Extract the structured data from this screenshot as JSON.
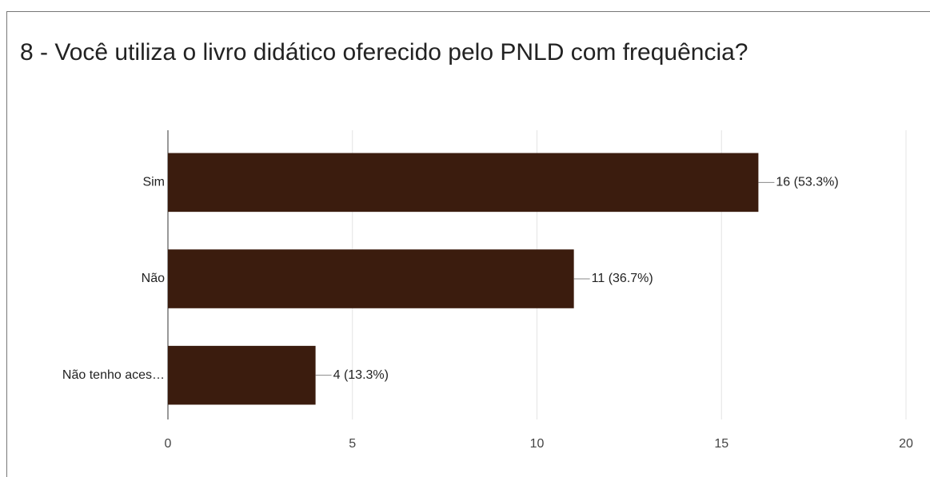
{
  "chart_data": {
    "type": "bar",
    "orientation": "horizontal",
    "title": "8 - Você utiliza o livro didático oferecido pelo PNLD com frequência?",
    "categories": [
      "Sim",
      "Não",
      "Não tenho aces…"
    ],
    "values": [
      16,
      11,
      4
    ],
    "value_labels": [
      "16 (53.3%)",
      "11 (36.7%)",
      "4 (13.3%)"
    ],
    "color": "#3b1c0e",
    "xlim": [
      0,
      20
    ],
    "xticks": [
      0,
      5,
      10,
      15,
      20
    ],
    "grid": true
  }
}
